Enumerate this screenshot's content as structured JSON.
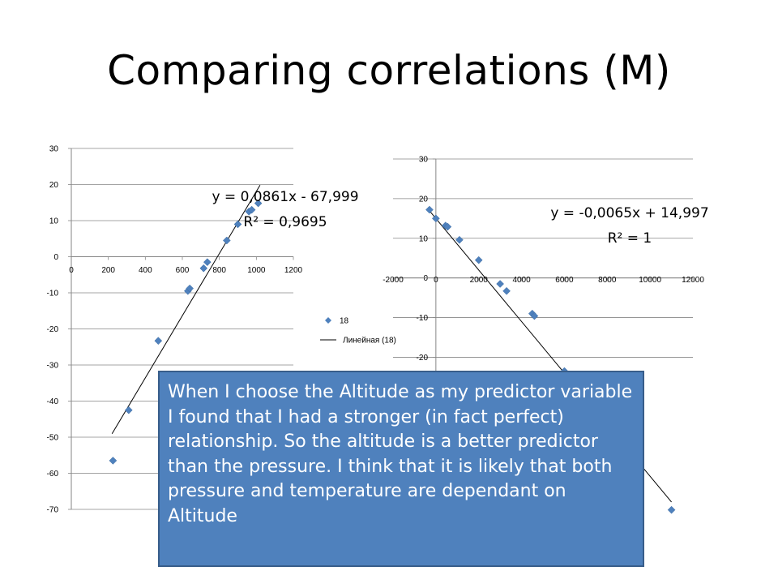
{
  "slide": {
    "title": "Comparing correlations (M)",
    "callout_text": "When I choose the Altitude as my predictor variable I found that I had a stronger (in fact perfect) relationship. So the altitude is a better predictor than the pressure. I think that it is likely that both pressure and temperature are dependant on Altitude",
    "callout_color": "#4f81bd"
  },
  "chart_data": [
    {
      "type": "scatter",
      "title": "",
      "xlabel": "",
      "ylabel": "",
      "xlim": [
        0,
        1200
      ],
      "ylim": [
        -70,
        30
      ],
      "x_ticks": [
        "0",
        "200",
        "400",
        "600",
        "800",
        "1000",
        "1200"
      ],
      "y_ticks": [
        "30",
        "20",
        "10",
        "0",
        "-10",
        "-20",
        "-30",
        "-40",
        "-50",
        "-60",
        "-70"
      ],
      "marker_color": "#4f81bd",
      "series": [
        {
          "name": "18",
          "points": [
            [
              225,
              -56.5
            ],
            [
              310,
              -42.5
            ],
            [
              470,
              -23.3
            ],
            [
              630,
              -9.5
            ],
            [
              640,
              -8.8
            ],
            [
              715,
              -3.2
            ],
            [
              735,
              -1.5
            ],
            [
              840,
              4.5
            ],
            [
              900,
              9.0
            ],
            [
              960,
              12.5
            ],
            [
              975,
              13.0
            ],
            [
              1010,
              14.8
            ]
          ]
        }
      ],
      "trendline": {
        "name": "Линейная (18)",
        "x_range": [
          220,
          1020
        ],
        "equation": "y = 0,0861x - 67,999",
        "r2": "R² = 0,9695"
      },
      "legend": {
        "placement": "right",
        "series_label": "18",
        "trendline_label": "Линейная (18)"
      }
    },
    {
      "type": "scatter",
      "title": "",
      "xlabel": "",
      "ylabel": "",
      "xlim": [
        -2000,
        12000
      ],
      "ylim": [
        -60,
        30
      ],
      "x_ticks": [
        "-2000",
        "0",
        "2000",
        "4000",
        "6000",
        "8000",
        "10000",
        "12000"
      ],
      "y_ticks": [
        "30",
        "20",
        "10",
        "0",
        "-10",
        "-20"
      ],
      "marker_color": "#4f81bd",
      "series": [
        {
          "name": "",
          "points": [
            [
              -300,
              17.2
            ],
            [
              0,
              15.0
            ],
            [
              450,
              13.2
            ],
            [
              550,
              12.9
            ],
            [
              1100,
              9.6
            ],
            [
              2000,
              4.5
            ],
            [
              3000,
              -1.5
            ],
            [
              3300,
              -3.3
            ],
            [
              4500,
              -9.0
            ],
            [
              4600,
              -9.6
            ],
            [
              6000,
              -23.5
            ],
            [
              11000,
              -58.5
            ]
          ]
        }
      ],
      "trendline": {
        "x_range": [
          -400,
          11000
        ],
        "equation": "y = -0,0065x + 14,997",
        "r2": "R² = 1"
      }
    }
  ]
}
